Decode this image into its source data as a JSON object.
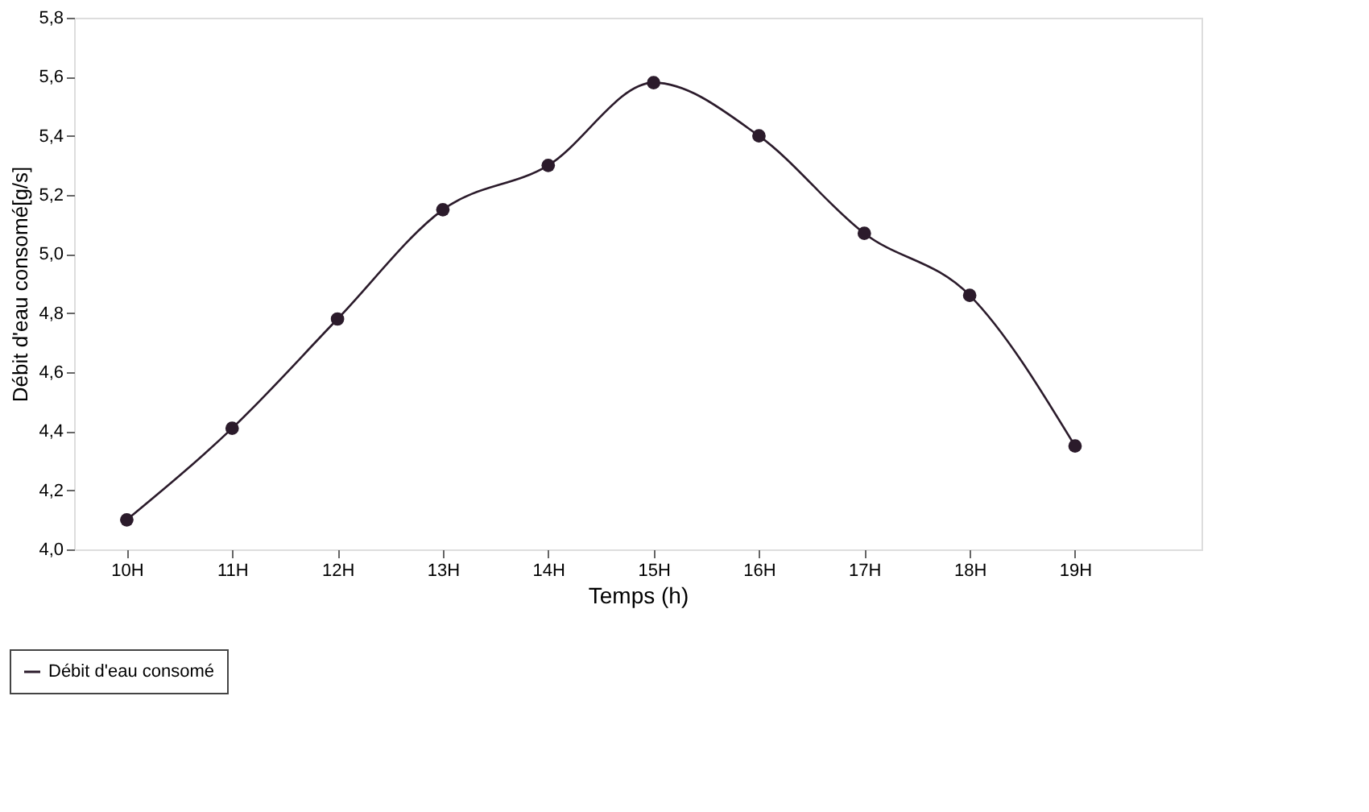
{
  "chart_data": {
    "type": "line",
    "xlabel": "Temps (h)",
    "ylabel": "Débit d'eau consomé[g/s]",
    "categories": [
      "10H",
      "11H",
      "12H",
      "13H",
      "14H",
      "15H",
      "16H",
      "17H",
      "18H",
      "19H"
    ],
    "series": [
      {
        "name": "Débit d'eau consomé",
        "color": "#2b1b2b",
        "values": [
          4.1,
          4.41,
          4.78,
          5.15,
          5.3,
          5.58,
          5.4,
          5.07,
          4.86,
          4.35
        ]
      }
    ],
    "ylim": [
      4.0,
      5.8
    ],
    "yticks": [
      {
        "value": 4.0,
        "label": "4,0"
      },
      {
        "value": 4.2,
        "label": "4,2"
      },
      {
        "value": 4.4,
        "label": "4,4"
      },
      {
        "value": 4.6,
        "label": "4,6"
      },
      {
        "value": 4.8,
        "label": "4,8"
      },
      {
        "value": 5.0,
        "label": "5,0"
      },
      {
        "value": 5.2,
        "label": "5,2"
      },
      {
        "value": 5.4,
        "label": "5,4"
      },
      {
        "value": 5.6,
        "label": "5,6"
      },
      {
        "value": 5.8,
        "label": "5,8"
      }
    ],
    "grid": false,
    "legend": "bottom left",
    "marker": "circle",
    "line_style": "solid"
  }
}
